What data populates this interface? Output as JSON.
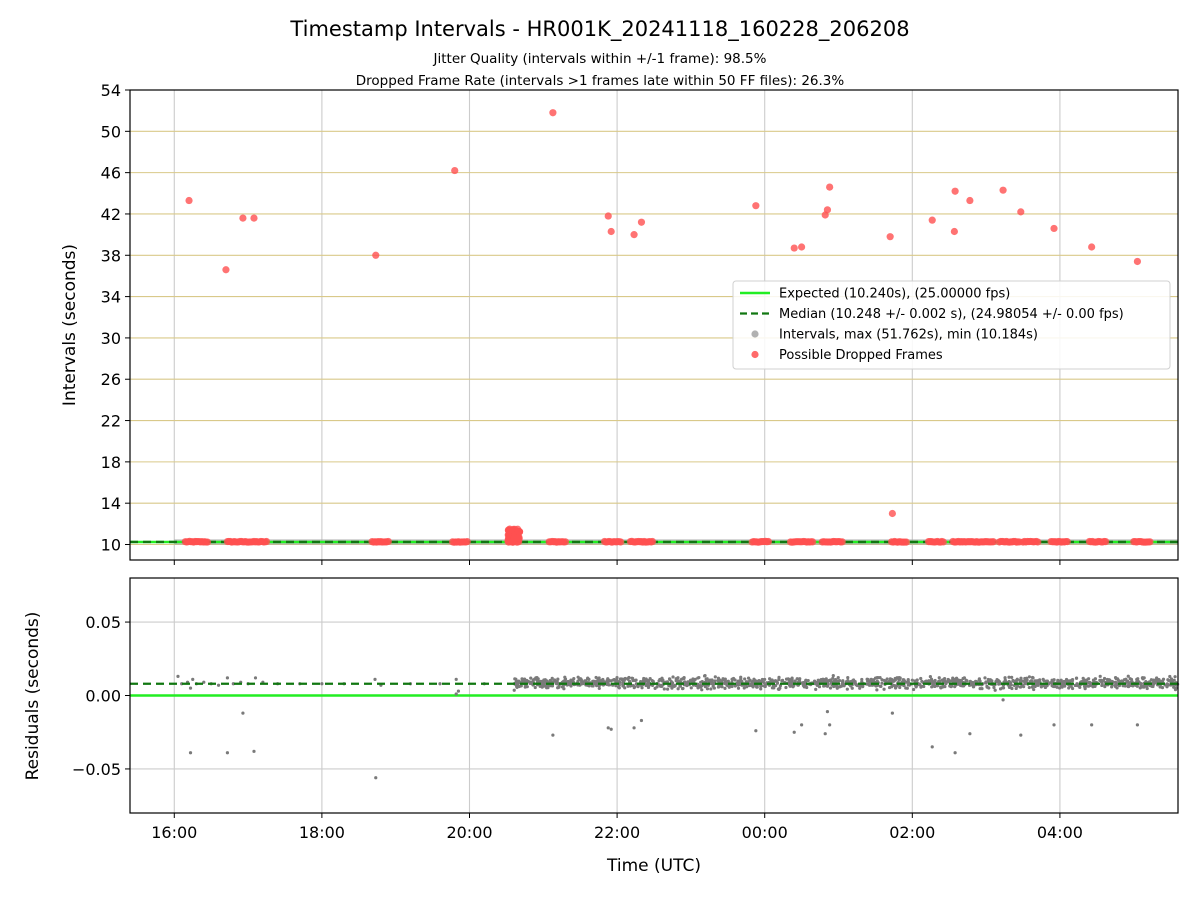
{
  "figure": {
    "title": "Timestamp Intervals - HR001K_20241118_160228_206208",
    "subtitle_1": "Jitter Quality (intervals within +/-1 frame): 98.5%",
    "subtitle_2": "Dropped Frame Rate (intervals >1 frames late within 50 FF files): 26.3%"
  },
  "chart_data": [
    {
      "type": "scatter",
      "panel": "intervals",
      "ylabel": "Intervals (seconds)",
      "xlabel": "",
      "xlim_hours": [
        15.4,
        29.6
      ],
      "ylim": [
        8.5,
        54
      ],
      "yticks": [
        10,
        14,
        18,
        22,
        26,
        30,
        34,
        38,
        42,
        46,
        50,
        54
      ],
      "grid": "vertical grey at x ticks, horizontal gold at y ticks",
      "legend_position": "center-right",
      "legend": [
        {
          "label": "Expected (10.240s), (25.00000 fps)",
          "style": "solid-line",
          "color": "#22ee22"
        },
        {
          "label": "Median (10.248 +/- 0.002 s), (24.98054 +/- 0.00 fps)",
          "style": "dashed-line",
          "color": "#117711"
        },
        {
          "label": "Intervals, max (51.762s), min (10.184s)",
          "style": "marker",
          "color": "#a8a8a8"
        },
        {
          "label": "Possible Dropped Frames",
          "style": "marker",
          "color": "#ff5050"
        }
      ],
      "expected": 10.24,
      "median": 10.248,
      "interval_band": {
        "x_start": 16.0,
        "x_end": 29.6,
        "y_low": 10.18,
        "y_high": 10.4
      },
      "dropped_outliers": [
        [
          16.2,
          43.3
        ],
        [
          16.7,
          36.6
        ],
        [
          16.93,
          41.6
        ],
        [
          17.08,
          41.6
        ],
        [
          18.73,
          38.0
        ],
        [
          19.8,
          46.2
        ],
        [
          21.13,
          51.8
        ],
        [
          21.88,
          41.8
        ],
        [
          21.92,
          40.3
        ],
        [
          22.23,
          40.0
        ],
        [
          22.33,
          41.2
        ],
        [
          23.88,
          42.8
        ],
        [
          24.4,
          38.7
        ],
        [
          24.5,
          38.8
        ],
        [
          24.82,
          41.9
        ],
        [
          24.85,
          42.4
        ],
        [
          24.88,
          44.6
        ],
        [
          25.7,
          39.8
        ],
        [
          25.73,
          13.0
        ],
        [
          26.27,
          41.4
        ],
        [
          26.57,
          40.3
        ],
        [
          26.58,
          44.2
        ],
        [
          26.78,
          43.3
        ],
        [
          27.23,
          44.3
        ],
        [
          27.47,
          42.2
        ],
        [
          27.92,
          40.6
        ],
        [
          28.43,
          38.8
        ],
        [
          29.05,
          37.4
        ]
      ],
      "dropped_near_expected_clusters": [
        [
          16.15,
          16.45
        ],
        [
          16.72,
          17.25
        ],
        [
          18.68,
          18.9
        ],
        [
          19.77,
          19.97
        ],
        [
          21.08,
          21.3
        ],
        [
          21.83,
          22.05
        ],
        [
          22.18,
          22.48
        ],
        [
          23.83,
          24.05
        ],
        [
          24.35,
          24.65
        ],
        [
          24.78,
          25.05
        ],
        [
          25.72,
          25.92
        ],
        [
          26.22,
          26.42
        ],
        [
          26.55,
          27.1
        ],
        [
          27.18,
          27.45
        ],
        [
          27.5,
          27.7
        ],
        [
          27.88,
          28.1
        ],
        [
          28.4,
          28.62
        ],
        [
          29.0,
          29.22
        ]
      ],
      "dropped_burst": {
        "x_start": 20.52,
        "x_end": 20.68,
        "y_low": 10.2,
        "y_high": 11.5
      }
    },
    {
      "type": "scatter",
      "panel": "residuals",
      "ylabel": "Residuals (seconds)",
      "xlabel": "Time (UTC)",
      "xlim_hours": [
        15.4,
        29.6
      ],
      "ylim": [
        -0.08,
        0.08
      ],
      "yticks": [
        0.05,
        0.0,
        -0.05
      ],
      "ytick_labels": [
        "0.05",
        "0.00",
        "−0.05"
      ],
      "xtick_hours": [
        16,
        18,
        20,
        22,
        24,
        26,
        28
      ],
      "xtick_labels": [
        "16:00",
        "18:00",
        "20:00",
        "22:00",
        "00:00",
        "02:00",
        "04:00"
      ],
      "expected_residual": 0.0,
      "median_residual": 0.008,
      "residual_band": {
        "x_start": 20.6,
        "x_end": 29.6,
        "y_low": 0.003,
        "y_high": 0.014
      },
      "sparse_residuals": [
        [
          16.05,
          0.013
        ],
        [
          16.1,
          0.008
        ],
        [
          16.18,
          0.009
        ],
        [
          16.22,
          0.005
        ],
        [
          16.25,
          0.011
        ],
        [
          16.3,
          0.008
        ],
        [
          16.4,
          0.009
        ],
        [
          16.5,
          0.008
        ],
        [
          16.6,
          0.007
        ],
        [
          16.72,
          0.012
        ],
        [
          16.8,
          0.008
        ],
        [
          16.9,
          0.009
        ],
        [
          17.0,
          0.008
        ],
        [
          17.1,
          0.012
        ],
        [
          17.2,
          0.009
        ],
        [
          17.4,
          0.008
        ],
        [
          17.7,
          0.008
        ],
        [
          18.0,
          0.008
        ],
        [
          18.3,
          0.008
        ],
        [
          18.72,
          0.011
        ],
        [
          18.8,
          0.007
        ],
        [
          19.2,
          0.008
        ],
        [
          19.6,
          0.008
        ],
        [
          19.82,
          0.011
        ],
        [
          19.85,
          0.003
        ],
        [
          20.2,
          0.008
        ]
      ],
      "negative_residuals": [
        [
          16.22,
          -0.039
        ],
        [
          16.72,
          -0.039
        ],
        [
          16.93,
          -0.012
        ],
        [
          17.08,
          -0.038
        ],
        [
          18.73,
          -0.056
        ],
        [
          19.82,
          0.001
        ],
        [
          21.13,
          -0.027
        ],
        [
          21.88,
          -0.022
        ],
        [
          21.92,
          -0.023
        ],
        [
          22.23,
          -0.022
        ],
        [
          22.33,
          -0.017
        ],
        [
          23.88,
          -0.024
        ],
        [
          24.4,
          -0.025
        ],
        [
          24.5,
          -0.02
        ],
        [
          24.82,
          -0.026
        ],
        [
          24.85,
          -0.011
        ],
        [
          24.88,
          -0.02
        ],
        [
          25.73,
          -0.012
        ],
        [
          26.27,
          -0.035
        ],
        [
          26.58,
          -0.039
        ],
        [
          26.78,
          -0.026
        ],
        [
          27.23,
          -0.003
        ],
        [
          27.47,
          -0.027
        ],
        [
          27.92,
          -0.02
        ],
        [
          28.43,
          -0.02
        ],
        [
          29.05,
          -0.02
        ]
      ]
    }
  ],
  "colors": {
    "expected": "#22ee22",
    "median": "#117711",
    "interval_marker": "#a8a8a8",
    "dropped_marker": "#ff5050",
    "residual_marker": "#7a7a7a",
    "hgrid_top": "#d9c98a",
    "vgrid": "#cccccc"
  }
}
